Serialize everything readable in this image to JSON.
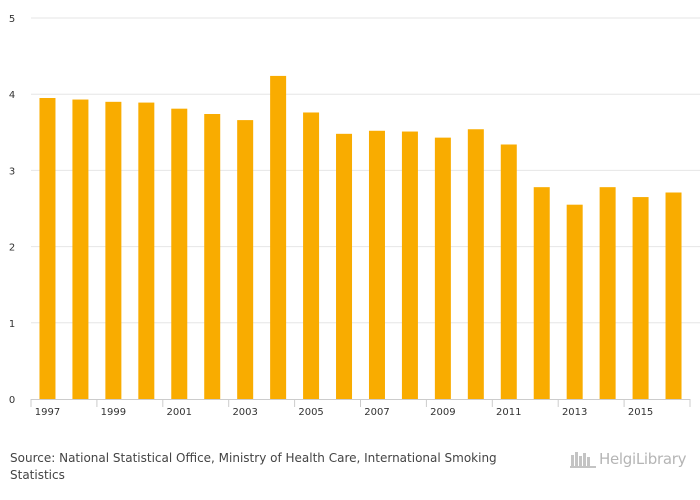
{
  "chart_data": {
    "type": "bar",
    "categories": [
      "1997",
      "1998",
      "1999",
      "2000",
      "2001",
      "2002",
      "2003",
      "2004",
      "2005",
      "2006",
      "2007",
      "2008",
      "2009",
      "2010",
      "2011",
      "2012",
      "2013",
      "2014",
      "2015",
      "2016"
    ],
    "x_tick_labels": [
      "1997",
      "1999",
      "2001",
      "2003",
      "2005",
      "2007",
      "2009",
      "2011",
      "2013",
      "2015"
    ],
    "values": [
      3.95,
      3.93,
      3.9,
      3.89,
      3.81,
      3.74,
      3.66,
      4.24,
      3.76,
      3.48,
      3.52,
      3.51,
      3.43,
      3.54,
      3.34,
      2.78,
      2.55,
      2.78,
      2.65,
      2.71
    ],
    "y_ticks": [
      "0",
      "1",
      "2",
      "3",
      "4",
      "5"
    ],
    "ylim": [
      0,
      5
    ],
    "grid": true,
    "bar_color": "#f9ac00"
  },
  "source": {
    "label": "Source:",
    "text": "National Statistical Office, Ministry of Health Care, International Smoking Statistics"
  },
  "logo": {
    "text": "HelgiLibrary",
    "color": "#b5b5b5"
  }
}
